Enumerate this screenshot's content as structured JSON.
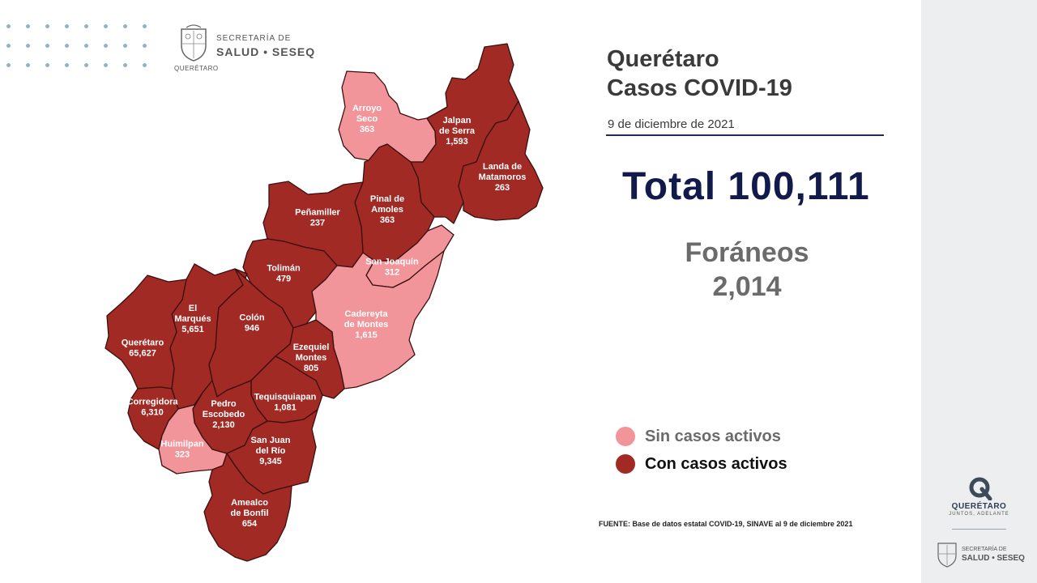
{
  "header": {
    "logo_line1": "SECRETARÍA DE",
    "logo_line2": "SALUD • SESEQ",
    "logo_sub": "QUERÉTARO"
  },
  "title": {
    "line1": "Querétaro",
    "line2": "Casos COVID-19",
    "date": "9 de diciembre de 2021"
  },
  "total": "Total 100,111",
  "foraneos": {
    "label": "Foráneos",
    "value": "2,014"
  },
  "legend": {
    "inactive_label": "Sin casos activos",
    "active_label": "Con casos activos"
  },
  "colors": {
    "active": "#a12a25",
    "inactive": "#f2959b",
    "border": "#3a0f0e",
    "title_navy": "#111a4a"
  },
  "municipalities": [
    {
      "name_lines": [
        "Arroyo",
        "Seco"
      ],
      "cases": "363",
      "status": "inactive"
    },
    {
      "name_lines": [
        "Jalpan",
        "de Serra"
      ],
      "cases": "1,593",
      "status": "active"
    },
    {
      "name_lines": [
        "Landa de",
        "Matamoros"
      ],
      "cases": "263",
      "status": "active"
    },
    {
      "name_lines": [
        "Pinal de",
        "Amoles"
      ],
      "cases": "363",
      "status": "active"
    },
    {
      "name_lines": [
        "Peñamiller"
      ],
      "cases": "237",
      "status": "active"
    },
    {
      "name_lines": [
        "San Joaquín"
      ],
      "cases": "312",
      "status": "inactive"
    },
    {
      "name_lines": [
        "Tolimán"
      ],
      "cases": "479",
      "status": "active"
    },
    {
      "name_lines": [
        "Cadereyta",
        "de Montes"
      ],
      "cases": "1,615",
      "status": "inactive"
    },
    {
      "name_lines": [
        "El",
        "Marqués"
      ],
      "cases": "5,651",
      "status": "active"
    },
    {
      "name_lines": [
        "Colón"
      ],
      "cases": "946",
      "status": "active"
    },
    {
      "name_lines": [
        "Querétaro"
      ],
      "cases": "65,627",
      "status": "active"
    },
    {
      "name_lines": [
        "Ezequiel",
        "Montes"
      ],
      "cases": "805",
      "status": "active"
    },
    {
      "name_lines": [
        "Corregidora"
      ],
      "cases": "6,310",
      "status": "active"
    },
    {
      "name_lines": [
        "Tequisquiapan"
      ],
      "cases": "1,081",
      "status": "active"
    },
    {
      "name_lines": [
        "Pedro",
        "Escobedo"
      ],
      "cases": "2,130",
      "status": "active"
    },
    {
      "name_lines": [
        "San Juan",
        "del Río"
      ],
      "cases": "9,345",
      "status": "active"
    },
    {
      "name_lines": [
        "Huimilpan"
      ],
      "cases": "323",
      "status": "inactive"
    },
    {
      "name_lines": [
        "Amealco",
        "de Bonfil"
      ],
      "cases": "654",
      "status": "active"
    }
  ],
  "source": "FUENTE: Base de datos estatal COVID-19, SINAVE al 9 de diciembre 2021",
  "sidebar": {
    "brand": "QUERÉTARO",
    "tagline": "JUNTOS, ADELANTE",
    "logo_line1": "SECRETARÍA DE",
    "logo_line2": "SALUD • SESEQ"
  }
}
